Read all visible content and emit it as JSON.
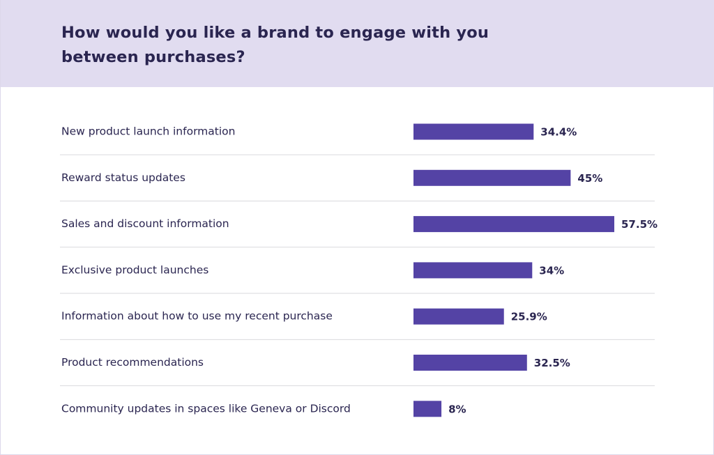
{
  "chart_data": {
    "type": "bar",
    "orientation": "horizontal",
    "title": "How would you like a brand to engage with you between purchases?",
    "categories": [
      "New product launch information",
      "Reward status updates",
      "Sales and discount information",
      "Exclusive product launches",
      "Information about how to use my recent purchase",
      "Product recommendations",
      "Community updates in spaces like Geneva or Discord"
    ],
    "values": [
      34.4,
      45,
      57.5,
      34,
      25.9,
      32.5,
      8
    ],
    "value_labels": [
      "34.4%",
      "45%",
      "57.5%",
      "34%",
      "25.9%",
      "32.5%",
      "8%"
    ],
    "unit": "%",
    "xlim": [
      0,
      57.5
    ],
    "bar_color": "#5443a5",
    "header_color": "#e1dcf0",
    "text_color": "#2a2550",
    "divider_color": "#d9d9dd",
    "grid": false,
    "legend": false
  }
}
